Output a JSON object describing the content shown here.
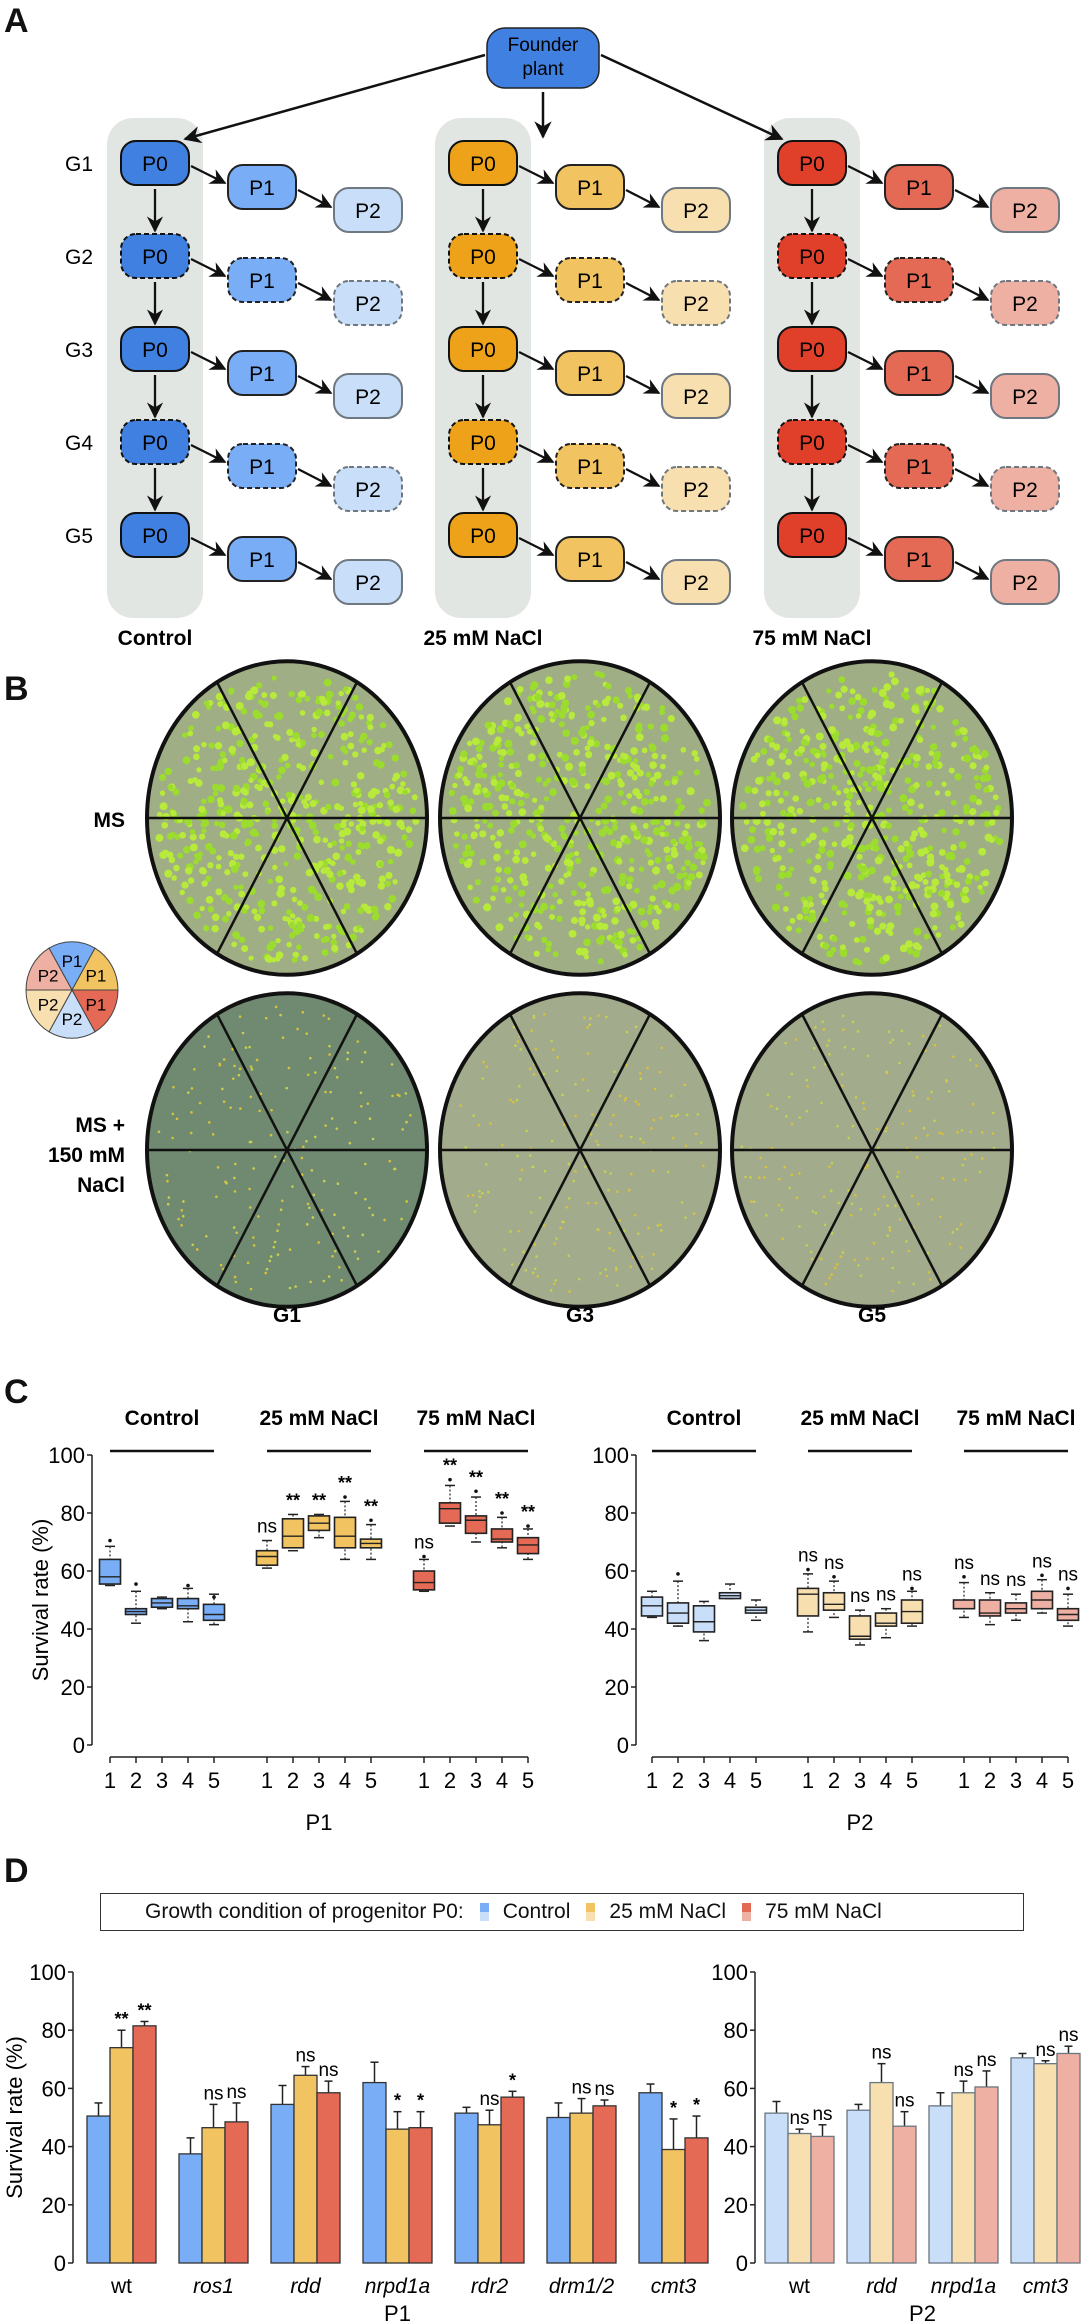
{
  "panels": {
    "A": {
      "letter": "A",
      "founder_label": [
        "Founder",
        "plant"
      ],
      "generations": [
        "G1",
        "G2",
        "G3",
        "G4",
        "G5"
      ],
      "node_labels": {
        "p0": "P0",
        "p1": "P1",
        "p2": "P2"
      },
      "dashed_generations": [
        "G2",
        "G4"
      ],
      "conditions": [
        {
          "name": "Control",
          "p0": "#3f80e0",
          "p1": "#79aef7",
          "p2": "#c9def9"
        },
        {
          "name": "25 mM NaCl",
          "p0": "#eda21a",
          "p1": "#f2c361",
          "p2": "#f8dfaf"
        },
        {
          "name": "75 mM NaCl",
          "p0": "#e0402a",
          "p1": "#e46a55",
          "p2": "#efb0a4"
        }
      ]
    },
    "B": {
      "letter": "B",
      "row_labels": [
        [
          "MS"
        ],
        [
          "MS +",
          "150 mM",
          "NaCl"
        ]
      ],
      "col_labels": [
        "G1",
        "G3",
        "G5"
      ],
      "plate_key": [
        {
          "label": "P1",
          "color": "#79aef7"
        },
        {
          "label": "P1",
          "color": "#f2c361"
        },
        {
          "label": "P1",
          "color": "#e46a55"
        },
        {
          "label": "P2",
          "color": "#c9def9"
        },
        {
          "label": "P2",
          "color": "#f8dfaf"
        },
        {
          "label": "P2",
          "color": "#efb0a4"
        }
      ]
    },
    "C": {
      "letter": "C"
    },
    "D": {
      "letter": "D",
      "legend": {
        "title": "Growth condition of progenitor P0:",
        "items": [
          "Control",
          "25 mM NaCl",
          "75 mM NaCl"
        ]
      }
    }
  },
  "chart_data": [
    {
      "id": "C-P1",
      "type": "boxplot",
      "xlabel": "P1",
      "ylabel": "Survival rate (%)",
      "ylim": [
        0,
        100
      ],
      "yticks": [
        0,
        20,
        40,
        60,
        80,
        100
      ],
      "group_labels": [
        "Control",
        "25 mM NaCl",
        "75 mM NaCl"
      ],
      "categories": [
        "1",
        "2",
        "3",
        "4",
        "5"
      ],
      "colors": [
        "#79aef7",
        "#f2c361",
        "#e46a55"
      ],
      "groups": [
        {
          "name": "Control",
          "boxes": [
            {
              "gen": 1,
              "min": 55,
              "q1": 55.5,
              "median": 58,
              "q3": 64,
              "max": 68.5,
              "outlier": 70.5,
              "sig": ""
            },
            {
              "gen": 2,
              "min": 42,
              "q1": 45,
              "median": 46,
              "q3": 47,
              "max": 53,
              "outlier": 55.5,
              "sig": ""
            },
            {
              "gen": 3,
              "min": 47,
              "q1": 47.5,
              "median": 49,
              "q3": 50.5,
              "max": 51,
              "outlier": null,
              "sig": ""
            },
            {
              "gen": 4,
              "min": 42.5,
              "q1": 47,
              "median": 48,
              "q3": 50.5,
              "max": 54,
              "outlier": 55,
              "sig": ""
            },
            {
              "gen": 5,
              "min": 41.5,
              "q1": 43,
              "median": 45,
              "q3": 48.5,
              "max": 52,
              "outlier": 51,
              "sig": ""
            }
          ]
        },
        {
          "name": "25 mM NaCl",
          "boxes": [
            {
              "gen": 1,
              "min": 61,
              "q1": 62,
              "median": 65,
              "q3": 67,
              "max": 70.5,
              "outlier": null,
              "sig": "ns"
            },
            {
              "gen": 2,
              "min": 67,
              "q1": 68,
              "median": 72,
              "q3": 78,
              "max": 79.5,
              "outlier": null,
              "sig": "**"
            },
            {
              "gen": 3,
              "min": 71.5,
              "q1": 74,
              "median": 76.5,
              "q3": 79,
              "max": 79.5,
              "outlier": null,
              "sig": "**"
            },
            {
              "gen": 4,
              "min": 64,
              "q1": 68,
              "median": 72,
              "q3": 78.5,
              "max": 84,
              "outlier": 85.5,
              "sig": "**"
            },
            {
              "gen": 5,
              "min": 64,
              "q1": 68,
              "median": 69.5,
              "q3": 71,
              "max": 76,
              "outlier": 77.5,
              "sig": "**"
            }
          ]
        },
        {
          "name": "75 mM NaCl",
          "boxes": [
            {
              "gen": 1,
              "min": 53,
              "q1": 53.5,
              "median": 56,
              "q3": 60,
              "max": 64,
              "outlier": 65,
              "sig": "ns"
            },
            {
              "gen": 2,
              "min": 75.5,
              "q1": 76.5,
              "median": 81.5,
              "q3": 83.5,
              "max": 89.5,
              "outlier": 91.5,
              "sig": "**"
            },
            {
              "gen": 3,
              "min": 70,
              "q1": 73,
              "median": 77.5,
              "q3": 79,
              "max": 85.5,
              "outlier": 87.5,
              "sig": "**"
            },
            {
              "gen": 4,
              "min": 68,
              "q1": 70,
              "median": 71,
              "q3": 74.5,
              "max": 78.5,
              "outlier": 80,
              "sig": "**"
            },
            {
              "gen": 5,
              "min": 64,
              "q1": 66,
              "median": 69,
              "q3": 71.5,
              "max": 74.5,
              "outlier": 75.5,
              "sig": "**"
            }
          ]
        }
      ]
    },
    {
      "id": "C-P2",
      "type": "boxplot",
      "xlabel": "P2",
      "ylabel": "",
      "ylim": [
        0,
        100
      ],
      "yticks": [
        0,
        20,
        40,
        60,
        80,
        100
      ],
      "group_labels": [
        "Control",
        "25 mM NaCl",
        "75 mM NaCl"
      ],
      "categories": [
        "1",
        "2",
        "3",
        "4",
        "5"
      ],
      "colors": [
        "#c9def9",
        "#f8dfaf",
        "#efb0a4"
      ],
      "groups": [
        {
          "name": "Control",
          "boxes": [
            {
              "gen": 1,
              "min": 44,
              "q1": 44.5,
              "median": 48,
              "q3": 51,
              "max": 53,
              "outlier": null,
              "sig": ""
            },
            {
              "gen": 2,
              "min": 41,
              "q1": 42,
              "median": 45.5,
              "q3": 49,
              "max": 56.5,
              "outlier": 59,
              "sig": ""
            },
            {
              "gen": 3,
              "min": 36,
              "q1": 39,
              "median": 42.5,
              "q3": 48,
              "max": 49.5,
              "outlier": null,
              "sig": ""
            },
            {
              "gen": 4,
              "min": 50.5,
              "q1": 50.5,
              "median": 51.5,
              "q3": 52.5,
              "max": 55.5,
              "outlier": null,
              "sig": ""
            },
            {
              "gen": 5,
              "min": 43,
              "q1": 45.5,
              "median": 46.5,
              "q3": 47.5,
              "max": 50,
              "outlier": null,
              "sig": ""
            }
          ]
        },
        {
          "name": "25 mM NaCl",
          "boxes": [
            {
              "gen": 1,
              "min": 39,
              "q1": 44.5,
              "median": 52,
              "q3": 54,
              "max": 59,
              "outlier": 60.5,
              "sig": "ns"
            },
            {
              "gen": 2,
              "min": 44,
              "q1": 46.5,
              "median": 48.5,
              "q3": 52.5,
              "max": 56.5,
              "outlier": 58,
              "sig": "ns"
            },
            {
              "gen": 3,
              "min": 34.5,
              "q1": 36.5,
              "median": 37.5,
              "q3": 44.5,
              "max": 46.5,
              "outlier": null,
              "sig": "ns"
            },
            {
              "gen": 4,
              "min": 37,
              "q1": 41,
              "median": 42,
              "q3": 45.5,
              "max": 47,
              "outlier": null,
              "sig": "ns"
            },
            {
              "gen": 5,
              "min": 41,
              "q1": 42,
              "median": 46,
              "q3": 50,
              "max": 53,
              "outlier": 54,
              "sig": "ns"
            }
          ]
        },
        {
          "name": "75 mM NaCl",
          "boxes": [
            {
              "gen": 1,
              "min": 44,
              "q1": 47,
              "median": 47,
              "q3": 50,
              "max": 56,
              "outlier": 58,
              "sig": "ns"
            },
            {
              "gen": 2,
              "min": 41.5,
              "q1": 44.5,
              "median": 45.5,
              "q3": 50,
              "max": 52.5,
              "outlier": null,
              "sig": "ns"
            },
            {
              "gen": 3,
              "min": 43,
              "q1": 45.5,
              "median": 47,
              "q3": 49,
              "max": 52,
              "outlier": null,
              "sig": "ns"
            },
            {
              "gen": 4,
              "min": 45.5,
              "q1": 47,
              "median": 50,
              "q3": 53,
              "max": 57,
              "outlier": 58.5,
              "sig": "ns"
            },
            {
              "gen": 5,
              "min": 41,
              "q1": 43,
              "median": 45,
              "q3": 47,
              "max": 52,
              "outlier": 54,
              "sig": "ns"
            }
          ]
        }
      ]
    },
    {
      "id": "D-P1",
      "type": "bar",
      "xlabel": "P1",
      "ylabel": "Survival rate (%)",
      "ylim": [
        0,
        100
      ],
      "yticks": [
        0,
        20,
        40,
        60,
        80,
        100
      ],
      "categories": [
        "wt",
        "ros1",
        "rdd",
        "nrpd1a",
        "rdr2",
        "drm1/2",
        "cmt3"
      ],
      "italic_categories": [
        "ros1",
        "rdd",
        "nrpd1a",
        "rdr2",
        "drm1/2",
        "cmt3"
      ],
      "series": [
        {
          "name": "Control",
          "color": "#79aef7",
          "values": [
            50.5,
            37.5,
            54.5,
            62,
            51.5,
            50,
            58.5
          ],
          "errors": [
            4.5,
            5.5,
            6.5,
            7,
            2,
            5,
            3
          ],
          "sig": [
            "",
            "",
            "",
            "",
            "",
            "",
            ""
          ]
        },
        {
          "name": "25 mM NaCl",
          "color": "#f2c361",
          "values": [
            74,
            46.5,
            64.5,
            46,
            47.5,
            51.5,
            39
          ],
          "errors": [
            6,
            8,
            3,
            6,
            5,
            5,
            10.5
          ],
          "sig": [
            "**",
            "ns",
            "ns",
            "*",
            "ns",
            "ns",
            "*"
          ]
        },
        {
          "name": "75 mM NaCl",
          "color": "#e46a55",
          "values": [
            81.5,
            48.5,
            58.5,
            46.5,
            57,
            54,
            43
          ],
          "errors": [
            1.5,
            6.5,
            4,
            5.5,
            2,
            2,
            7.5
          ],
          "sig": [
            "**",
            "ns",
            "ns",
            "*",
            "*",
            "ns",
            "*"
          ]
        }
      ]
    },
    {
      "id": "D-P2",
      "type": "bar",
      "xlabel": "P2",
      "ylabel": "",
      "ylim": [
        0,
        100
      ],
      "yticks": [
        0,
        20,
        40,
        60,
        80,
        100
      ],
      "categories": [
        "wt",
        "rdd",
        "nrpd1a",
        "cmt3"
      ],
      "italic_categories": [
        "rdd",
        "nrpd1a",
        "cmt3"
      ],
      "series": [
        {
          "name": "Control",
          "color": "#c9def9",
          "values": [
            51.5,
            52.5,
            54,
            70.5
          ],
          "errors": [
            4,
            2,
            4.5,
            1.5
          ],
          "sig": [
            "",
            "",
            "",
            ""
          ]
        },
        {
          "name": "25 mM NaCl",
          "color": "#f8dfaf",
          "values": [
            44.5,
            62,
            58.5,
            68.5
          ],
          "errors": [
            1.5,
            6.5,
            4,
            1
          ],
          "sig": [
            "ns",
            "ns",
            "ns",
            "ns"
          ]
        },
        {
          "name": "75 mM NaCl",
          "color": "#efb0a4",
          "values": [
            43.5,
            47,
            60.5,
            72
          ],
          "errors": [
            4,
            5,
            5.5,
            2.5
          ],
          "sig": [
            "ns",
            "ns",
            "ns",
            "ns"
          ]
        }
      ]
    }
  ]
}
